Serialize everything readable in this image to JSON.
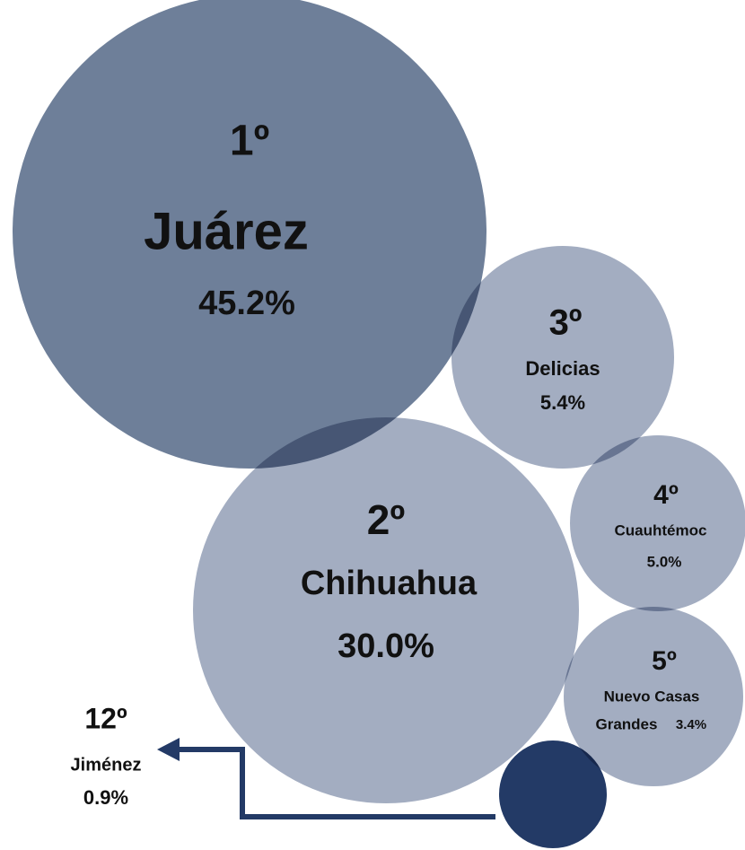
{
  "items": [
    {
      "rank": "1º",
      "name": "Juárez",
      "value": "45.2%"
    },
    {
      "rank": "2º",
      "name": "Chihuahua",
      "value": "30.0%"
    },
    {
      "rank": "3º",
      "name": "Delicias",
      "value": "5.4%"
    },
    {
      "rank": "4º",
      "name": "Cuauhtémoc",
      "value": "5.0%"
    },
    {
      "rank": "5º",
      "name_lines": [
        "Nuevo Casas",
        "Grandes"
      ],
      "value": "3.4%"
    },
    {
      "rank": "12º",
      "name": "Jiménez",
      "value": "0.9%"
    }
  ]
}
